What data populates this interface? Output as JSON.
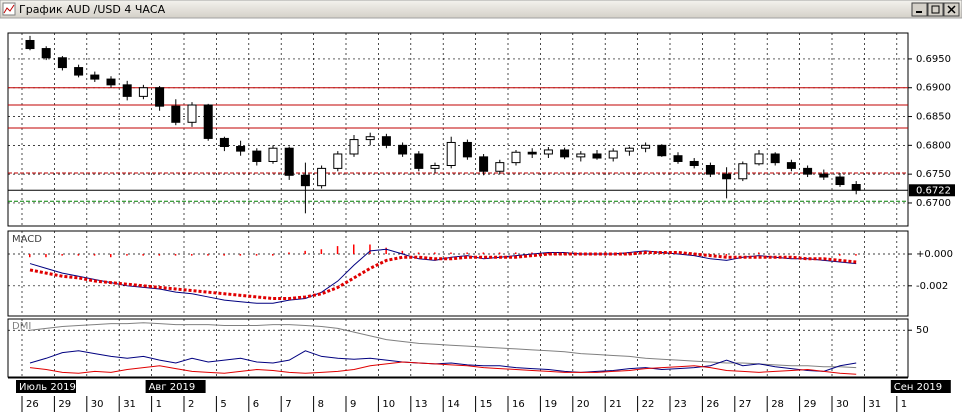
{
  "window": {
    "title": "График AUD /USD  4 ЧАСА"
  },
  "chart_data": [
    {
      "type": "candlestick",
      "open": [
        0.6982,
        0.6968,
        0.6952,
        0.6935,
        0.6922,
        0.6915,
        0.6905,
        0.6885,
        0.69,
        0.6868,
        0.684,
        0.687,
        0.6812,
        0.6798,
        0.679,
        0.6772,
        0.6795,
        0.6748,
        0.673,
        0.676,
        0.6785,
        0.681,
        0.6815,
        0.68,
        0.6785,
        0.676,
        0.6765,
        0.6805,
        0.678,
        0.6755,
        0.677,
        0.6788,
        0.6785,
        0.6792,
        0.678,
        0.6785,
        0.6778,
        0.679,
        0.6795,
        0.68,
        0.6782,
        0.6772,
        0.6765,
        0.675,
        0.6742,
        0.6768,
        0.6785,
        0.677,
        0.676,
        0.675,
        0.6745,
        0.6732
      ],
      "high": [
        0.699,
        0.6972,
        0.6955,
        0.694,
        0.6928,
        0.692,
        0.6912,
        0.6905,
        0.6903,
        0.688,
        0.6875,
        0.6872,
        0.6815,
        0.6808,
        0.6795,
        0.68,
        0.6798,
        0.677,
        0.6765,
        0.679,
        0.6818,
        0.6822,
        0.682,
        0.6805,
        0.679,
        0.677,
        0.6815,
        0.681,
        0.6785,
        0.6775,
        0.6792,
        0.6795,
        0.6797,
        0.6796,
        0.679,
        0.6792,
        0.6795,
        0.6798,
        0.6805,
        0.6802,
        0.6788,
        0.6778,
        0.677,
        0.6762,
        0.6772,
        0.6792,
        0.6788,
        0.6775,
        0.6765,
        0.6758,
        0.6752,
        0.6738
      ],
      "low": [
        0.6965,
        0.6948,
        0.693,
        0.6918,
        0.691,
        0.69,
        0.6878,
        0.688,
        0.686,
        0.6835,
        0.6832,
        0.6808,
        0.679,
        0.6782,
        0.6765,
        0.6768,
        0.674,
        0.6682,
        0.6725,
        0.6755,
        0.678,
        0.68,
        0.6795,
        0.678,
        0.6755,
        0.6752,
        0.676,
        0.6775,
        0.6748,
        0.675,
        0.6765,
        0.6778,
        0.6778,
        0.6776,
        0.6772,
        0.6775,
        0.6772,
        0.6782,
        0.6788,
        0.678,
        0.6768,
        0.676,
        0.6745,
        0.6708,
        0.6738,
        0.6765,
        0.6765,
        0.6755,
        0.6745,
        0.674,
        0.6728,
        0.6715
      ],
      "close": [
        0.6968,
        0.6952,
        0.6935,
        0.6922,
        0.6915,
        0.6905,
        0.6885,
        0.69,
        0.6868,
        0.684,
        0.687,
        0.6812,
        0.6798,
        0.679,
        0.6772,
        0.6795,
        0.6748,
        0.673,
        0.676,
        0.6785,
        0.681,
        0.6815,
        0.68,
        0.6785,
        0.676,
        0.6765,
        0.6805,
        0.678,
        0.6755,
        0.677,
        0.6788,
        0.6785,
        0.6792,
        0.678,
        0.6785,
        0.6778,
        0.679,
        0.6795,
        0.68,
        0.6782,
        0.6772,
        0.6765,
        0.675,
        0.6742,
        0.6768,
        0.6785,
        0.677,
        0.676,
        0.675,
        0.6745,
        0.6732,
        0.6722
      ],
      "up_color": "#ffffff",
      "down_color": "#000000",
      "ylim": [
        0.666,
        0.6995
      ],
      "yticks": [
        {
          "value": 0.695,
          "label": "0.6950"
        },
        {
          "value": 0.69,
          "label": "0.6900"
        },
        {
          "value": 0.685,
          "label": "0.6850"
        },
        {
          "value": 0.68,
          "label": "0.6800"
        },
        {
          "value": 0.675,
          "label": "0.6750"
        },
        {
          "value": 0.67,
          "label": "0.6700"
        }
      ],
      "xticks": [
        {
          "value": 0,
          "label": "26"
        },
        {
          "value": 2,
          "label": "29"
        },
        {
          "value": 4,
          "label": "30"
        },
        {
          "value": 6,
          "label": "31"
        },
        {
          "value": 8,
          "label": "1"
        },
        {
          "value": 10,
          "label": "2"
        },
        {
          "value": 12,
          "label": "5"
        },
        {
          "value": 14,
          "label": "6"
        },
        {
          "value": 16,
          "label": "7"
        },
        {
          "value": 18,
          "label": "8"
        },
        {
          "value": 20,
          "label": "9"
        },
        {
          "value": 22,
          "label": "10"
        },
        {
          "value": 24,
          "label": "13"
        },
        {
          "value": 26,
          "label": "14"
        },
        {
          "value": 28,
          "label": "15"
        },
        {
          "value": 30,
          "label": "16"
        },
        {
          "value": 32,
          "label": "19"
        },
        {
          "value": 34,
          "label": "20"
        },
        {
          "value": 36,
          "label": "21"
        },
        {
          "value": 38,
          "label": "22"
        },
        {
          "value": 40,
          "label": "23"
        },
        {
          "value": 42,
          "label": "26"
        },
        {
          "value": 44,
          "label": "27"
        },
        {
          "value": 46,
          "label": "28"
        },
        {
          "value": 48,
          "label": "29"
        },
        {
          "value": 50,
          "label": "30"
        },
        {
          "value": 52,
          "label": "31"
        },
        {
          "value": 54,
          "label": "1"
        }
      ],
      "month_ticks": [
        {
          "value": 0,
          "label": "Июль 2019"
        },
        {
          "value": 8,
          "label": "Авг 2019"
        },
        {
          "value": 54,
          "label": "Сен 2019"
        }
      ],
      "levels": [
        {
          "value": 0.69,
          "color": "#c00000",
          "dash": false
        },
        {
          "value": 0.687,
          "color": "#c00000",
          "dash": false
        },
        {
          "value": 0.683,
          "color": "#c00000",
          "dash": false
        },
        {
          "value": 0.6752,
          "color": "#c00000",
          "dash": true
        },
        {
          "value": 0.6703,
          "color": "#008000",
          "dash": true
        }
      ],
      "last_price": {
        "value": 0.6722,
        "label": "0.6722"
      },
      "grid": true
    },
    {
      "type": "macd",
      "title": "MACD",
      "ylim": [
        -0.0039,
        0.00145
      ],
      "yticks": [
        {
          "value": 0,
          "label": "+0.000"
        },
        {
          "value": -0.002,
          "label": "-0.002"
        }
      ],
      "grid": true,
      "histogram": {
        "color": "#ff0000",
        "values": [
          -0.0002,
          -0.0002,
          -0.0001,
          -0.0001,
          -0.0001,
          -0.0002,
          -0.0001,
          -0.0001,
          -0.0001,
          -0.0001,
          -0.0001,
          -0.0001,
          -0.0001,
          -0.0001,
          -0.0001,
          -0.0001,
          0.0001,
          0.0002,
          0.0003,
          0.0005,
          0.0006,
          0.0006,
          0.0004,
          0.0002,
          0.0001,
          0.0001,
          0.0001,
          0.0001,
          0.0001,
          0.0001,
          0.0001,
          0.0001,
          0.0001,
          0.0001,
          0,
          0,
          0,
          0.0001,
          0.0001,
          0.0001,
          0,
          0,
          -0.0001,
          -0.0001,
          0,
          0.0001,
          0,
          0,
          0,
          0,
          -0.0001,
          -0.0001
        ]
      },
      "series": [
        {
          "color": "#000080",
          "dotted": false,
          "values": [
            -0.0006,
            -0.0009,
            -0.0012,
            -0.0014,
            -0.0016,
            -0.0018,
            -0.002,
            -0.0021,
            -0.0022,
            -0.0024,
            -0.0025,
            -0.0027,
            -0.0029,
            -0.003,
            -0.0031,
            -0.0031,
            -0.0029,
            -0.0028,
            -0.0024,
            -0.0017,
            -0.0007,
            0.0002,
            0.0003,
            0,
            -0.0003,
            -0.0004,
            -0.0002,
            -0.0001,
            -0.0003,
            -0.0002,
            -0.0001,
            0,
            0.0001,
            0.0001,
            0,
            0,
            0,
            0.0001,
            0.0002,
            0.0001,
            0,
            -0.0001,
            -0.0003,
            -0.0004,
            -0.0002,
            -0.0001,
            -0.0002,
            -0.0003,
            -0.0003,
            -0.0004,
            -0.0005,
            -0.0006
          ]
        },
        {
          "color": "#e00000",
          "dotted": true,
          "values": [
            -0.001,
            -0.0012,
            -0.0014,
            -0.0015,
            -0.0017,
            -0.0018,
            -0.0019,
            -0.002,
            -0.0021,
            -0.0022,
            -0.0023,
            -0.0024,
            -0.0025,
            -0.0026,
            -0.0027,
            -0.0028,
            -0.0028,
            -0.0027,
            -0.0025,
            -0.0021,
            -0.0015,
            -0.0009,
            -0.0004,
            -0.0002,
            -0.0002,
            -0.0003,
            -0.0003,
            -0.0002,
            -0.0002,
            -0.0002,
            -0.0002,
            -0.0001,
            0,
            0,
            0,
            0,
            0,
            0,
            0.0001,
            0.0001,
            0.0001,
            0,
            -0.0001,
            -0.0002,
            -0.0002,
            -0.0002,
            -0.0002,
            -0.0002,
            -0.0003,
            -0.0003,
            -0.0004,
            -0.0005
          ]
        }
      ]
    },
    {
      "type": "line",
      "title": "DMI",
      "ylim": [
        0,
        62
      ],
      "yticks": [
        50
      ],
      "grid": true,
      "series": [
        {
          "color": "#808080",
          "dotted": false,
          "values": [
            50,
            52,
            54,
            55,
            56,
            57,
            57,
            58,
            57,
            56,
            56,
            56,
            55,
            55,
            55,
            56,
            56,
            55,
            54,
            52,
            48,
            44,
            40,
            38,
            36,
            35,
            34,
            33,
            32,
            31,
            30,
            29,
            28,
            27,
            25,
            24,
            23,
            22,
            20,
            19,
            18,
            17,
            16,
            15,
            15,
            14,
            13,
            12,
            12,
            11,
            11,
            10
          ]
        },
        {
          "color": "#000080",
          "dotted": false,
          "values": [
            15,
            20,
            26,
            28,
            25,
            22,
            20,
            22,
            18,
            15,
            20,
            16,
            18,
            20,
            16,
            15,
            18,
            28,
            22,
            20,
            19,
            20,
            18,
            16,
            15,
            14,
            15,
            13,
            12,
            12,
            10,
            9,
            8,
            6,
            5,
            6,
            7,
            9,
            10,
            8,
            9,
            10,
            12,
            18,
            12,
            14,
            11,
            9,
            7,
            6,
            12,
            15
          ]
        },
        {
          "color": "#e00000",
          "dotted": false,
          "values": [
            10,
            8,
            5,
            4,
            6,
            5,
            8,
            10,
            12,
            9,
            6,
            5,
            4,
            6,
            8,
            7,
            5,
            4,
            5,
            6,
            8,
            12,
            14,
            16,
            15,
            14,
            13,
            12,
            10,
            9,
            8,
            7,
            6,
            5,
            5,
            5,
            6,
            7,
            9,
            10,
            11,
            12,
            10,
            7,
            6,
            5,
            6,
            7,
            8,
            6,
            4,
            3
          ]
        }
      ]
    }
  ]
}
